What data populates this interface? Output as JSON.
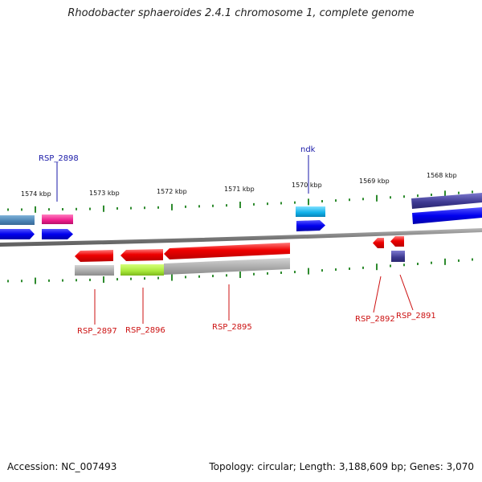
{
  "title": "Rhodobacter sphaeroides 2.4.1 chromosome 1, complete genome",
  "footer": {
    "accession": "Accession: NC_007493",
    "summary": "Topology: circular; Length: 3,188,609 bp; Genes: 3,070"
  },
  "scale_labels": [
    "1574 kbp",
    "1573 kbp",
    "1572 kbp",
    "1571 kbp",
    "1570 kbp",
    "1569 kbp",
    "1568 kbp"
  ],
  "gene_labels": {
    "forward": [
      "RSP_2898",
      "ndk"
    ],
    "reverse": [
      "RSP_2897",
      "RSP_2896",
      "RSP_2895",
      "RSP_2892",
      "RSP_2891"
    ]
  },
  "colors": {
    "forward_label": "#1a1aa8",
    "reverse_label": "#cc1111",
    "backbone": "#808080",
    "tick": "#2e8b2e"
  }
}
